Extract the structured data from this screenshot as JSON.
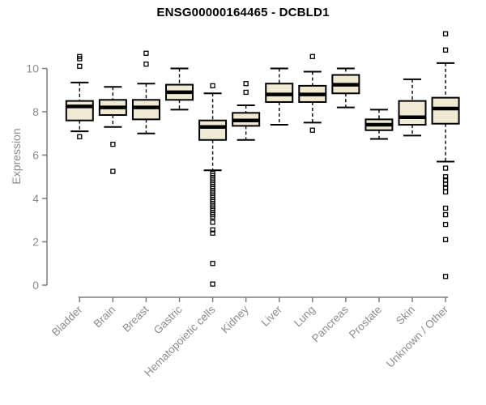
{
  "header": {
    "title": "ENSG00000164465 - DCBLD1"
  },
  "chart_data": {
    "type": "boxplot",
    "title": "ENSG00000164465 - DCBLD1",
    "xlabel": "",
    "ylabel": "Expression",
    "yticks": [
      0,
      2,
      4,
      6,
      8,
      10
    ],
    "ylim": [
      -0.2,
      11.7
    ],
    "grid": false,
    "legend": "none",
    "whisker_style": "dashed",
    "outlier_marker": "open-square",
    "categories": [
      "Bladder",
      "Brain",
      "Breast",
      "Gastric",
      "Hematopoietic cells",
      "Kidney",
      "Liver",
      "Lung",
      "Pancreas",
      "Prostate",
      "Skin",
      "Unknown / Other"
    ],
    "series": [
      {
        "category": "Bladder",
        "whisker_low": 7.1,
        "q1": 7.6,
        "median": 8.25,
        "q3": 8.5,
        "whisker_high": 9.35,
        "outliers": [
          10.55,
          10.45,
          10.1,
          6.85
        ]
      },
      {
        "category": "Brain",
        "whisker_low": 7.3,
        "q1": 7.85,
        "median": 8.2,
        "q3": 8.55,
        "whisker_high": 9.15,
        "outliers": [
          6.5,
          5.25
        ]
      },
      {
        "category": "Breast",
        "whisker_low": 7.0,
        "q1": 7.65,
        "median": 8.2,
        "q3": 8.55,
        "whisker_high": 9.3,
        "outliers": [
          10.7,
          10.2
        ]
      },
      {
        "category": "Gastric",
        "whisker_low": 8.1,
        "q1": 8.55,
        "median": 8.9,
        "q3": 9.25,
        "whisker_high": 10.0,
        "outliers": []
      },
      {
        "category": "Hematopoietic cells",
        "whisker_low": 5.3,
        "q1": 6.7,
        "median": 7.3,
        "q3": 7.6,
        "whisker_high": 8.85,
        "outliers": [
          9.2,
          5.15,
          5.05,
          4.95,
          4.85,
          4.75,
          4.65,
          4.55,
          4.45,
          4.35,
          4.25,
          4.15,
          4.05,
          3.95,
          3.85,
          3.75,
          3.65,
          3.55,
          3.45,
          3.35,
          3.25,
          3.15,
          2.9,
          2.55,
          2.4,
          1.0,
          0.05
        ]
      },
      {
        "category": "Kidney",
        "whisker_low": 6.7,
        "q1": 7.35,
        "median": 7.6,
        "q3": 7.95,
        "whisker_high": 8.3,
        "outliers": [
          9.3,
          8.9
        ]
      },
      {
        "category": "Liver",
        "whisker_low": 7.4,
        "q1": 8.45,
        "median": 8.8,
        "q3": 9.3,
        "whisker_high": 10.0,
        "outliers": []
      },
      {
        "category": "Lung",
        "whisker_low": 7.5,
        "q1": 8.45,
        "median": 8.8,
        "q3": 9.2,
        "whisker_high": 9.85,
        "outliers": [
          10.55,
          7.15
        ]
      },
      {
        "category": "Pancreas",
        "whisker_low": 8.2,
        "q1": 8.85,
        "median": 9.25,
        "q3": 9.7,
        "whisker_high": 10.0,
        "outliers": []
      },
      {
        "category": "Prostate",
        "whisker_low": 6.75,
        "q1": 7.15,
        "median": 7.4,
        "q3": 7.65,
        "whisker_high": 8.1,
        "outliers": []
      },
      {
        "category": "Skin",
        "whisker_low": 6.9,
        "q1": 7.4,
        "median": 7.75,
        "q3": 8.5,
        "whisker_high": 9.5,
        "outliers": []
      },
      {
        "category": "Unknown / Other",
        "whisker_low": 5.7,
        "q1": 7.45,
        "median": 8.15,
        "q3": 8.65,
        "whisker_high": 10.25,
        "outliers": [
          11.6,
          10.85,
          5.4,
          5.0,
          4.85,
          4.65,
          4.5,
          4.3,
          3.55,
          3.25,
          2.8,
          2.1,
          0.4
        ]
      }
    ],
    "colors": {
      "box_fill": "#f0ead2",
      "box_border": "#000000",
      "median": "#000000",
      "axis_line": "#7d7d7d",
      "tick_text": "#8c8c8c",
      "title_text": "#000000",
      "background": "#ffffff"
    }
  }
}
